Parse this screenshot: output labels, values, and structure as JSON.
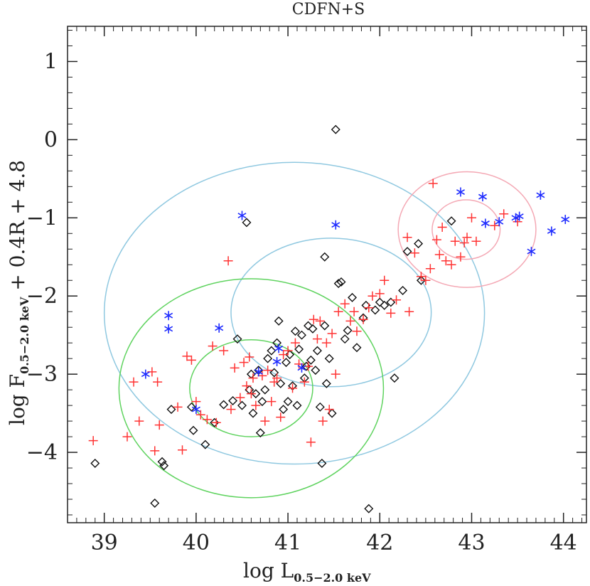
{
  "chart_data": {
    "type": "scatter",
    "title": "CDFN+S",
    "xlabel": {
      "main": "log L",
      "sub": "0.5−2.0 keV"
    },
    "ylabel": {
      "main": "log F",
      "sub": "0.5−2.0 keV",
      "tail": " + 0.4R + 4.8"
    },
    "xlim": [
      38.6,
      44.25
    ],
    "ylim": [
      -4.9,
      1.45
    ],
    "xticks": [
      39,
      40,
      41,
      42,
      43,
      44
    ],
    "yticks": [
      1,
      0,
      -1,
      -2,
      -3,
      -4
    ],
    "colors": {
      "red": "#ff3333",
      "blue": "#1f2cff",
      "black": "#111111",
      "cyan": "#8fc8e0",
      "green": "#5fd35f",
      "pink": "#f4a8b4"
    },
    "ellipses": [
      {
        "name": "cyan-large",
        "color": "cyan",
        "cx": 41.07,
        "cy": -2.22,
        "rx": 2.07,
        "ry": 1.93
      },
      {
        "name": "cyan-small",
        "color": "cyan",
        "cx": 41.47,
        "cy": -2.21,
        "rx": 1.09,
        "ry": 0.95
      },
      {
        "name": "green-large",
        "color": "green",
        "cx": 40.6,
        "cy": -3.18,
        "rx": 1.44,
        "ry": 1.4
      },
      {
        "name": "green-small",
        "color": "green",
        "cx": 40.6,
        "cy": -3.18,
        "rx": 0.67,
        "ry": 0.62
      },
      {
        "name": "pink-large",
        "color": "pink",
        "cx": 42.95,
        "cy": -1.15,
        "rx": 0.75,
        "ry": 0.74
      },
      {
        "name": "pink-small",
        "color": "pink",
        "cx": 42.94,
        "cy": -1.15,
        "rx": 0.37,
        "ry": 0.38
      }
    ],
    "series": [
      {
        "name": "blue-asterisk",
        "marker": "asterisk",
        "color": "blue",
        "points": [
          [
            39.45,
            -3.0
          ],
          [
            39.7,
            -2.25
          ],
          [
            39.7,
            -2.42
          ],
          [
            40.0,
            -3.45
          ],
          [
            40.25,
            -2.41
          ],
          [
            40.5,
            -0.97
          ],
          [
            40.68,
            -2.97
          ],
          [
            40.9,
            -2.67
          ],
          [
            40.88,
            -2.84
          ],
          [
            41.15,
            -2.92
          ],
          [
            41.52,
            -1.09
          ],
          [
            42.88,
            -0.67
          ],
          [
            43.12,
            -0.73
          ],
          [
            43.15,
            -1.07
          ],
          [
            43.3,
            -1.05
          ],
          [
            43.48,
            -1.0
          ],
          [
            43.52,
            -0.98
          ],
          [
            43.65,
            -1.43
          ],
          [
            43.75,
            -0.71
          ],
          [
            43.87,
            -1.17
          ],
          [
            44.02,
            -1.02
          ]
        ]
      },
      {
        "name": "black-diamond",
        "marker": "diamond",
        "color": "black",
        "points": [
          [
            38.9,
            -4.14
          ],
          [
            39.55,
            -4.65
          ],
          [
            39.63,
            -4.12
          ],
          [
            39.65,
            -4.17
          ],
          [
            39.73,
            -3.45
          ],
          [
            39.95,
            -3.42
          ],
          [
            39.97,
            -3.72
          ],
          [
            40.1,
            -3.9
          ],
          [
            40.2,
            -3.62
          ],
          [
            40.3,
            -3.39
          ],
          [
            40.4,
            -3.34
          ],
          [
            40.45,
            -2.55
          ],
          [
            40.5,
            -3.4
          ],
          [
            40.55,
            -1.06
          ],
          [
            40.58,
            -3.2
          ],
          [
            40.6,
            -3.0
          ],
          [
            40.62,
            -3.5
          ],
          [
            40.65,
            -3.25
          ],
          [
            40.68,
            -2.95
          ],
          [
            40.7,
            -3.75
          ],
          [
            40.72,
            -3.35
          ],
          [
            40.75,
            -3.2
          ],
          [
            40.78,
            -2.8
          ],
          [
            40.82,
            -2.7
          ],
          [
            40.85,
            -2.98
          ],
          [
            40.88,
            -2.6
          ],
          [
            40.9,
            -2.32
          ],
          [
            40.92,
            -3.12
          ],
          [
            40.95,
            -3.45
          ],
          [
            40.98,
            -2.85
          ],
          [
            41.0,
            -3.35
          ],
          [
            41.02,
            -2.75
          ],
          [
            41.05,
            -3.15
          ],
          [
            41.08,
            -2.45
          ],
          [
            41.1,
            -3.4
          ],
          [
            41.12,
            -2.68
          ],
          [
            41.15,
            -2.5
          ],
          [
            41.18,
            -3.05
          ],
          [
            41.2,
            -2.9
          ],
          [
            41.22,
            -2.38
          ],
          [
            41.25,
            -2.82
          ],
          [
            41.27,
            -2.42
          ],
          [
            41.3,
            -2.95
          ],
          [
            41.32,
            -2.7
          ],
          [
            41.35,
            -3.42
          ],
          [
            41.37,
            -4.14
          ],
          [
            41.4,
            -2.38
          ],
          [
            41.4,
            -1.5
          ],
          [
            41.42,
            -3.12
          ],
          [
            41.45,
            -2.8
          ],
          [
            41.48,
            -3.5
          ],
          [
            41.52,
            0.13
          ],
          [
            41.55,
            -1.84
          ],
          [
            41.58,
            -1.82
          ],
          [
            41.62,
            -2.55
          ],
          [
            41.65,
            -2.44
          ],
          [
            41.7,
            -2.02
          ],
          [
            41.75,
            -2.66
          ],
          [
            41.82,
            -2.28
          ],
          [
            41.85,
            -2.12
          ],
          [
            41.88,
            -4.72
          ],
          [
            41.95,
            -2.18
          ],
          [
            42.0,
            -2.08
          ],
          [
            42.05,
            -2.12
          ],
          [
            42.12,
            -2.08
          ],
          [
            42.16,
            -3.05
          ],
          [
            42.25,
            -1.93
          ],
          [
            42.3,
            -1.43
          ],
          [
            42.42,
            -1.33
          ],
          [
            42.45,
            -1.8
          ],
          [
            42.78,
            -1.04
          ]
        ]
      },
      {
        "name": "red-plus",
        "marker": "plus",
        "color": "red",
        "points": [
          [
            38.88,
            -3.85
          ],
          [
            39.25,
            -3.8
          ],
          [
            39.32,
            -3.1
          ],
          [
            39.38,
            -3.6
          ],
          [
            39.52,
            -2.97
          ],
          [
            39.55,
            -3.98
          ],
          [
            39.58,
            -3.1
          ],
          [
            39.6,
            -3.65
          ],
          [
            39.8,
            -3.42
          ],
          [
            39.85,
            -3.97
          ],
          [
            39.9,
            -2.77
          ],
          [
            39.95,
            -2.82
          ],
          [
            40.0,
            -3.35
          ],
          [
            40.05,
            -3.52
          ],
          [
            40.12,
            -3.58
          ],
          [
            40.18,
            -2.64
          ],
          [
            40.22,
            -3.62
          ],
          [
            40.3,
            -2.7
          ],
          [
            40.35,
            -1.55
          ],
          [
            40.38,
            -3.45
          ],
          [
            40.42,
            -2.92
          ],
          [
            40.48,
            -3.3
          ],
          [
            40.52,
            -2.85
          ],
          [
            40.55,
            -3.15
          ],
          [
            40.58,
            -2.78
          ],
          [
            40.6,
            -3.25
          ],
          [
            40.62,
            -3.05
          ],
          [
            40.65,
            -3.4
          ],
          [
            40.72,
            -3.02
          ],
          [
            40.75,
            -3.6
          ],
          [
            40.78,
            -2.95
          ],
          [
            40.82,
            -3.35
          ],
          [
            40.85,
            -3.1
          ],
          [
            40.88,
            -3.05
          ],
          [
            40.92,
            -3.55
          ],
          [
            40.95,
            -2.75
          ],
          [
            41.0,
            -2.7
          ],
          [
            41.05,
            -3.18
          ],
          [
            41.08,
            -2.6
          ],
          [
            41.12,
            -2.87
          ],
          [
            41.18,
            -3.1
          ],
          [
            41.22,
            -2.9
          ],
          [
            41.25,
            -3.87
          ],
          [
            41.28,
            -2.3
          ],
          [
            41.32,
            -2.55
          ],
          [
            41.35,
            -2.32
          ],
          [
            41.38,
            -3.6
          ],
          [
            41.42,
            -2.6
          ],
          [
            41.45,
            -3.45
          ],
          [
            41.48,
            -2.48
          ],
          [
            41.52,
            -3.0
          ],
          [
            41.55,
            -2.2
          ],
          [
            41.62,
            -2.1
          ],
          [
            41.68,
            -2.32
          ],
          [
            41.72,
            -2.2
          ],
          [
            41.75,
            -2.45
          ],
          [
            41.82,
            -2.3
          ],
          [
            41.88,
            -2.15
          ],
          [
            41.92,
            -2.0
          ],
          [
            42.0,
            -1.97
          ],
          [
            42.05,
            -1.8
          ],
          [
            42.12,
            -2.22
          ],
          [
            42.18,
            -2.05
          ],
          [
            42.3,
            -1.25
          ],
          [
            42.32,
            -2.2
          ],
          [
            42.38,
            -1.45
          ],
          [
            42.45,
            -1.75
          ],
          [
            42.5,
            -1.8
          ],
          [
            42.55,
            -1.65
          ],
          [
            42.58,
            -0.56
          ],
          [
            42.62,
            -1.28
          ],
          [
            42.65,
            -1.47
          ],
          [
            42.68,
            -1.12
          ],
          [
            42.72,
            -1.55
          ],
          [
            42.78,
            -1.6
          ],
          [
            42.82,
            -1.3
          ],
          [
            42.88,
            -1.5
          ],
          [
            42.92,
            -1.32
          ],
          [
            42.95,
            -1.25
          ],
          [
            43.0,
            -1.0
          ],
          [
            43.05,
            -1.3
          ],
          [
            43.25,
            -1.1
          ],
          [
            43.35,
            -0.95
          ],
          [
            43.5,
            -1.05
          ]
        ]
      }
    ]
  }
}
